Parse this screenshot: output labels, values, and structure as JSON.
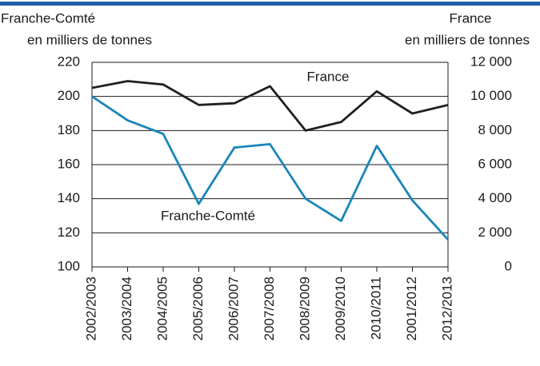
{
  "chart_data": {
    "type": "line",
    "y_label": [
      "Franche-Comté",
      "en milliers de tonnes"
    ],
    "y2_label": [
      "France",
      "en milliers de tonnes"
    ],
    "categories": [
      "2002/2003",
      "2003/2004",
      "2004/2005",
      "2005/2006",
      "2006/2007",
      "2007/2008",
      "2008/2009",
      "2009/2010",
      "2010/2011",
      "2001/2012",
      "2012/2013"
    ],
    "series": [
      {
        "name": "France",
        "color": "#231f20",
        "axis": "y2",
        "values": [
          10500,
          10900,
          10700,
          9500,
          9600,
          10600,
          8000,
          8500,
          10300,
          9000,
          9500
        ]
      },
      {
        "name": "Franche-Comté",
        "color": "#1a86b8",
        "values": [
          200,
          186,
          178,
          137,
          170,
          172,
          140,
          127,
          171,
          139,
          116
        ]
      }
    ],
    "ylim": [
      100,
      220
    ],
    "yticks": [
      100,
      120,
      140,
      160,
      180,
      200,
      220
    ],
    "y2lim": [
      0,
      12000
    ],
    "y2ticks": [
      0,
      {
        "value": 2000,
        "label": "2 000"
      },
      {
        "value": 4000,
        "label": "4 000"
      },
      {
        "value": 6000,
        "label": "6 000"
      },
      {
        "value": 8000,
        "label": "8 000"
      },
      {
        "value": 10000,
        "label": "10 000"
      },
      {
        "value": 12000,
        "label": "12 000"
      }
    ],
    "grid": true
  }
}
